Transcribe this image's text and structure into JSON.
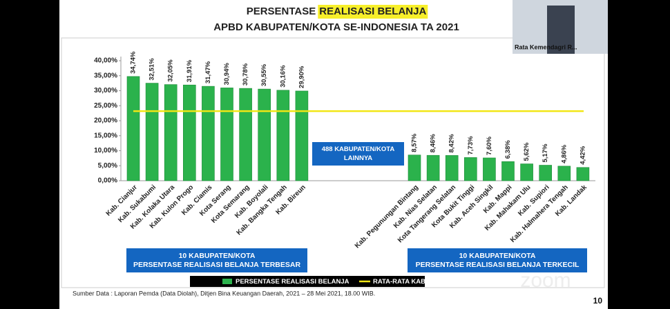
{
  "chart_data": {
    "type": "bar",
    "title_parts": [
      "PERSENTASE",
      "REALISASI BELANJA"
    ],
    "subtitle": "APBD KABUPATEN/KOTA SE-INDONESIA TA 2021",
    "categories": [
      "Kab. Cianjur",
      "Kab. Sukabumi",
      "Kab. Kolaka Utara",
      "Kab. Kulon Progo",
      "Kab. Ciamis",
      "Kota Serang",
      "Kota Semarang",
      "Kab. Boyolali",
      "Kab. Bangka Tengah",
      "Kab. Bireun",
      "Kab. Pegunungan Bintang",
      "Kab. Nias Selatan",
      "Kota Tangerang Selatan",
      "Kota Bukit Tinggi",
      "Kab. Aceh Singkil",
      "Kab. Mappi",
      "Kab. Mahakam Ulu",
      "Kab. Supiori",
      "Kab. Halmahera Tengah",
      "Kab. Landak"
    ],
    "series": [
      {
        "name": "PERSENTASE REALISASI BELANJA",
        "color": "#2bb24c",
        "values": [
          34.74,
          32.51,
          32.05,
          31.91,
          31.47,
          30.94,
          30.78,
          30.55,
          30.16,
          29.9,
          8.57,
          8.46,
          8.42,
          7.73,
          7.6,
          6.38,
          5.62,
          5.17,
          4.86,
          4.42
        ],
        "value_labels": [
          "34,74%",
          "32,51%",
          "32,05%",
          "31,91%",
          "31,47%",
          "30,94%",
          "30,78%",
          "30,55%",
          "30,16%",
          "29,90%",
          "8,57%",
          "8,46%",
          "8,42%",
          "7,73%",
          "7,60%",
          "6,38%",
          "5,62%",
          "5,17%",
          "4,86%",
          "4,42%"
        ]
      }
    ],
    "reference_line": {
      "name": "RATA-RATA KAB/KOTA",
      "value": 23.2,
      "color": "#f2e614"
    },
    "ylim": [
      0,
      40
    ],
    "yticks": [
      {
        "value": 0,
        "label": "0,00%"
      },
      {
        "value": 5,
        "label": "5,00%"
      },
      {
        "value": 10,
        "label": "10,00%"
      },
      {
        "value": 15,
        "label": "15,00%"
      },
      {
        "value": 20,
        "label": "20,00%"
      },
      {
        "value": 25,
        "label": "25,00%"
      },
      {
        "value": 30,
        "label": "30,00%"
      },
      {
        "value": 35,
        "label": "35,00%"
      },
      {
        "value": 40,
        "label": "40,00%"
      }
    ],
    "annotations": [
      {
        "lines": [
          "10 KABUPATEN/KOTA",
          "PERSENTASE REALISASI BELANJA TERBESAR"
        ]
      },
      {
        "lines": [
          "488 KABUPATEN/KOTA",
          "LAINNYA"
        ]
      },
      {
        "lines": [
          "10 KABUPATEN/KOTA",
          "PERSENTASE REALISASI BELANJA TERKECIL"
        ]
      }
    ]
  },
  "source": "Sumber Data : Laporan Pemda (Data Diolah), Ditjen Bina Keuangan Daerah, 2021 – 28 Mei 2021, 18.00 WIB.",
  "page_number": "10",
  "participant": "Rata Kemendagri R...",
  "watermark": "zoom"
}
